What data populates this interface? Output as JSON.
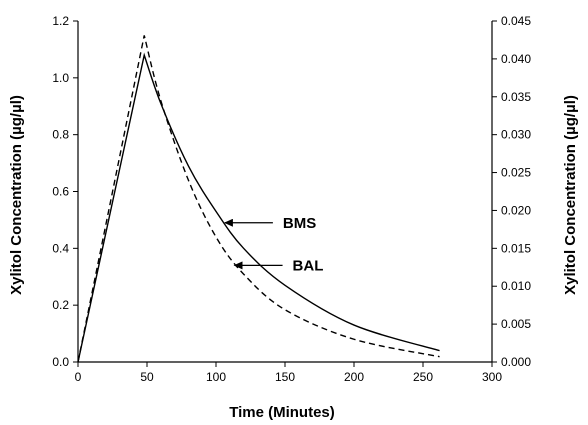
{
  "chart_data": {
    "type": "line",
    "xlabel": "Time (Minutes)",
    "ylabel_left": "Xylitol Concentration (µg/µl)",
    "ylabel_right": "Xylitol Concentration (µg/µl)",
    "xlim": [
      0,
      300
    ],
    "ylim_left": [
      0,
      1.2
    ],
    "ylim_right": [
      0,
      0.045
    ],
    "x_ticks": [
      "0",
      "50",
      "100",
      "150",
      "200",
      "250",
      "300"
    ],
    "y_left_ticks": [
      "0.0",
      "0.2",
      "0.4",
      "0.6",
      "0.8",
      "1.0",
      "1.2"
    ],
    "y_right_ticks": [
      "0.000",
      "0.005",
      "0.010",
      "0.015",
      "0.020",
      "0.025",
      "0.030",
      "0.035",
      "0.040",
      "0.045"
    ],
    "grid": false,
    "series": [
      {
        "name": "BMS",
        "axis": "left",
        "style": "solid",
        "x": [
          0,
          48,
          60,
          80,
          100,
          120,
          150,
          200,
          262
        ],
        "y": [
          0.0,
          1.08,
          0.91,
          0.69,
          0.53,
          0.4,
          0.27,
          0.13,
          0.04
        ]
      },
      {
        "name": "BAL",
        "axis": "right",
        "style": "dashed",
        "x": [
          0,
          48,
          60,
          80,
          100,
          120,
          150,
          200,
          262
        ],
        "y": [
          0.0,
          0.0431,
          0.0345,
          0.024,
          0.0165,
          0.0116,
          0.0069,
          0.003,
          0.0007
        ]
      }
    ],
    "annotations": [
      {
        "text": "BMS",
        "series": "BMS",
        "x": 105,
        "y": 0.49
      },
      {
        "text": "BAL",
        "series": "BAL",
        "x": 112,
        "y": 0.34
      }
    ]
  }
}
